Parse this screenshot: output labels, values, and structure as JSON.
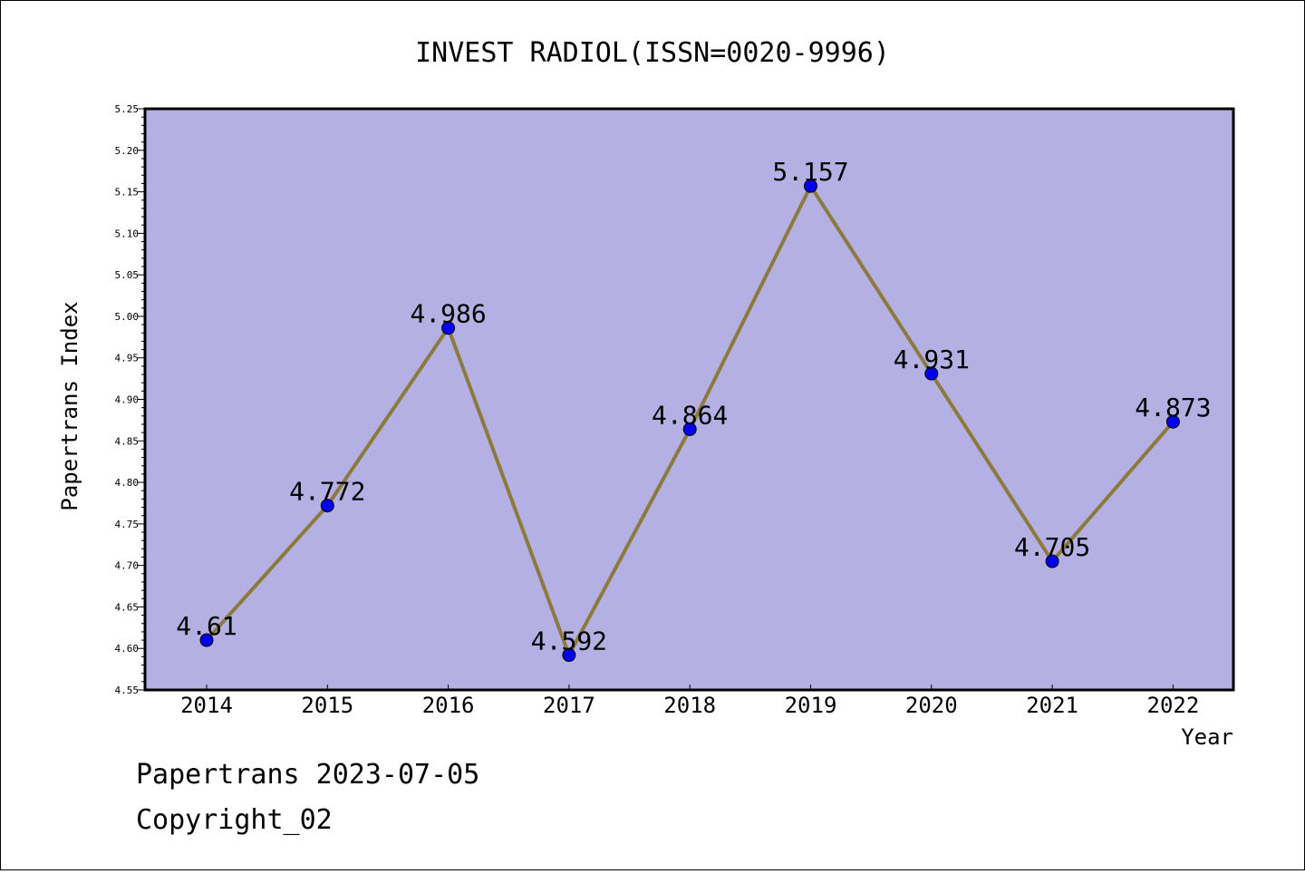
{
  "chart_data": {
    "type": "line",
    "title": "INVEST RADIOL(ISSN=0020-9996)",
    "xlabel": "Year",
    "ylabel": "Papertrans Index",
    "categories": [
      "2014",
      "2015",
      "2016",
      "2017",
      "2018",
      "2019",
      "2020",
      "2021",
      "2022"
    ],
    "series": [
      {
        "values": [
          4.61,
          4.772,
          4.986,
          4.592,
          4.864,
          5.157,
          4.931,
          4.705,
          4.873
        ],
        "labels": [
          "4.61",
          "4.772",
          "4.986",
          "4.592",
          "4.864",
          "5.157",
          "4.931",
          "4.705",
          "4.873"
        ]
      }
    ],
    "ylim": [
      4.55,
      5.25
    ],
    "yticks": [
      "4.55",
      "4.60",
      "4.65",
      "4.70",
      "4.75",
      "4.80",
      "4.85",
      "4.90",
      "4.95",
      "5.00",
      "5.05",
      "5.10",
      "5.15",
      "5.20",
      "5.25"
    ],
    "grid": false,
    "legend": "none",
    "colors": {
      "plot_background": "#b5b0e3",
      "line": "#8c7a3c",
      "marker": "#0000ee"
    }
  },
  "footer": {
    "line1": "Papertrans 2023-07-05",
    "line2": "Copyright_02"
  }
}
